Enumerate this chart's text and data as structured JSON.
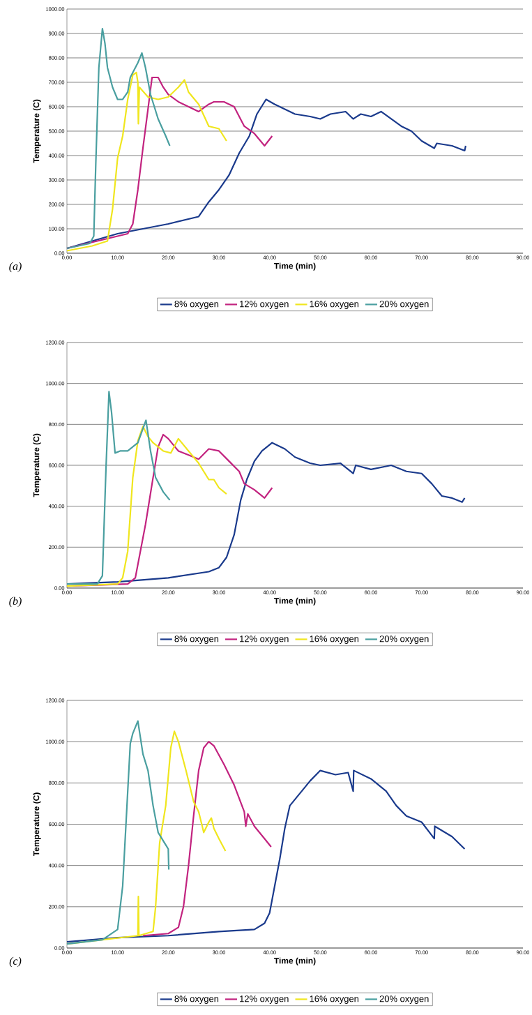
{
  "chart_data": [
    {
      "type": "line",
      "xlabel": "Time (min)",
      "ylabel": "Temperature (C)",
      "annotations": [
        "(a)"
      ],
      "grid": "y",
      "legend": "bottom",
      "xlim": [
        0,
        90
      ],
      "ylim": [
        0,
        1000
      ],
      "xticks": [
        {
          "value": 0,
          "label": "0.00"
        },
        {
          "value": 10,
          "label": "10.00"
        },
        {
          "value": 20,
          "label": "20.00"
        },
        {
          "value": 30,
          "label": "30.00"
        },
        {
          "value": 40,
          "label": "40.00"
        },
        {
          "value": 50,
          "label": "50.00"
        },
        {
          "value": 60,
          "label": "60.00"
        },
        {
          "value": 70,
          "label": "70.00"
        },
        {
          "value": 80,
          "label": "80.00"
        },
        {
          "value": 90,
          "label": "90.00"
        }
      ],
      "yticks": [
        {
          "value": 0,
          "label": "0.00"
        },
        {
          "value": 100,
          "label": "100.00"
        },
        {
          "value": 200,
          "label": "200.00"
        },
        {
          "value": 300,
          "label": "300.00"
        },
        {
          "value": 400,
          "label": "400.00"
        },
        {
          "value": 500,
          "label": "500.00"
        },
        {
          "value": 600,
          "label": "600.00"
        },
        {
          "value": 700,
          "label": "700.00"
        },
        {
          "value": 800,
          "label": "800.00"
        },
        {
          "value": 900,
          "label": "900.00"
        },
        {
          "value": 1000,
          "label": "1000.00"
        }
      ],
      "series": [
        {
          "name": "8% oxygen",
          "color": "#1a3a8c",
          "x": [
            0,
            10,
            20,
            26,
            28,
            30,
            32,
            34,
            36,
            37.5,
            39.3,
            41,
            43,
            45,
            48,
            50,
            52,
            55,
            56.5,
            58,
            60,
            62,
            64,
            66,
            68,
            70,
            72.5,
            73,
            76,
            78.5,
            78.7
          ],
          "values": [
            20,
            80,
            120,
            150,
            210,
            260,
            320,
            410,
            480,
            570,
            630,
            610,
            590,
            570,
            560,
            550,
            570,
            580,
            550,
            570,
            560,
            580,
            550,
            520,
            500,
            460,
            430,
            450,
            440,
            420,
            440
          ]
        },
        {
          "name": "12% oxygen",
          "color": "#c2237f",
          "x": [
            0,
            8,
            12,
            13,
            14,
            15,
            16,
            16.8,
            18,
            19,
            20,
            22,
            24,
            26,
            28,
            29,
            31,
            33,
            35,
            37,
            39,
            40.5
          ],
          "values": [
            20,
            60,
            80,
            120,
            260,
            430,
            590,
            720,
            720,
            680,
            650,
            620,
            600,
            580,
            610,
            620,
            620,
            600,
            520,
            490,
            440,
            480
          ]
        },
        {
          "name": "16% oxygen",
          "color": "#f0e61e",
          "x": [
            0,
            5,
            8,
            9,
            10,
            11,
            12,
            13,
            13.7,
            14,
            14.1,
            14.3,
            16,
            18,
            20,
            22,
            23.2,
            24,
            26,
            28,
            30,
            31.5
          ],
          "values": [
            10,
            30,
            50,
            180,
            390,
            480,
            630,
            730,
            740,
            700,
            530,
            680,
            640,
            630,
            640,
            680,
            710,
            660,
            610,
            520,
            510,
            460
          ]
        },
        {
          "name": "20% oxygen",
          "color": "#4a9fa0",
          "x": [
            0,
            4.5,
            5.3,
            5.7,
            6.3,
            7,
            7.5,
            8,
            9,
            10,
            11,
            12,
            12.5,
            14,
            14.8,
            15.5,
            16.5,
            18,
            19.5,
            20.3
          ],
          "values": [
            20,
            40,
            70,
            370,
            760,
            920,
            860,
            760,
            680,
            630,
            630,
            660,
            720,
            780,
            820,
            760,
            650,
            550,
            480,
            440
          ]
        }
      ]
    },
    {
      "type": "line",
      "xlabel": "Time (min)",
      "ylabel": "Temperature (C)",
      "annotations": [
        "(b)"
      ],
      "grid": "y",
      "legend": "bottom",
      "xlim": [
        0,
        90
      ],
      "ylim": [
        0,
        1200
      ],
      "xticks": [
        {
          "value": 0,
          "label": "0.00"
        },
        {
          "value": 10,
          "label": "10.00"
        },
        {
          "value": 20,
          "label": "20.00"
        },
        {
          "value": 30,
          "label": "30.00"
        },
        {
          "value": 40,
          "label": "40.00"
        },
        {
          "value": 50,
          "label": "50.00"
        },
        {
          "value": 60,
          "label": "60.00"
        },
        {
          "value": 70,
          "label": "70.00"
        },
        {
          "value": 80,
          "label": "80.00"
        },
        {
          "value": 90,
          "label": "90.00"
        }
      ],
      "yticks": [
        {
          "value": 0,
          "label": "0.00"
        },
        {
          "value": 200,
          "label": "200.00"
        },
        {
          "value": 400,
          "label": "400.00"
        },
        {
          "value": 600,
          "label": "600.00"
        },
        {
          "value": 800,
          "label": "800.00"
        },
        {
          "value": 1000,
          "label": "1000.00"
        },
        {
          "value": 1200,
          "label": "1200.00"
        }
      ],
      "series": [
        {
          "name": "8% oxygen",
          "color": "#1a3a8c",
          "x": [
            0,
            10,
            20,
            28,
            30,
            31.5,
            33,
            34.3,
            35.5,
            37,
            38.5,
            40.5,
            43,
            45,
            48,
            50,
            54,
            56.5,
            57,
            60,
            64,
            67,
            70,
            72,
            74,
            76,
            78,
            78.5
          ],
          "values": [
            20,
            30,
            50,
            80,
            100,
            150,
            260,
            430,
            530,
            620,
            670,
            710,
            680,
            640,
            610,
            600,
            610,
            560,
            600,
            580,
            600,
            570,
            560,
            510,
            450,
            440,
            420,
            440
          ]
        },
        {
          "name": "12% oxygen",
          "color": "#c2237f",
          "x": [
            0,
            12,
            13.5,
            14.5,
            15.5,
            17,
            18,
            19,
            20,
            22,
            24,
            26,
            28,
            30,
            32,
            34,
            35,
            37,
            39,
            40.5
          ],
          "values": [
            10,
            20,
            50,
            180,
            310,
            540,
            690,
            750,
            730,
            670,
            650,
            630,
            680,
            670,
            620,
            570,
            510,
            480,
            440,
            490
          ]
        },
        {
          "name": "16% oxygen",
          "color": "#f0e61e",
          "x": [
            0,
            10,
            11,
            12,
            13,
            14,
            15,
            16,
            17,
            19,
            20.5,
            22,
            24,
            26,
            28,
            29,
            30,
            31.5
          ],
          "values": [
            10,
            20,
            50,
            180,
            540,
            720,
            790,
            740,
            710,
            670,
            660,
            730,
            670,
            610,
            530,
            530,
            490,
            460
          ]
        },
        {
          "name": "20% oxygen",
          "color": "#4a9fa0",
          "x": [
            0,
            6,
            7,
            7.7,
            8.3,
            8.8,
            9.5,
            10.5,
            12,
            14,
            15.6,
            16.5,
            17.5,
            19,
            20.3
          ],
          "values": [
            20,
            20,
            60,
            580,
            960,
            860,
            660,
            670,
            670,
            710,
            820,
            670,
            540,
            470,
            430
          ]
        }
      ]
    },
    {
      "type": "line",
      "xlabel": "Time (min)",
      "ylabel": "Temperature (C)",
      "annotations": [
        "(c)"
      ],
      "grid": "y",
      "legend": "bottom",
      "xlim": [
        0,
        90
      ],
      "ylim": [
        0,
        1200
      ],
      "xticks": [
        {
          "value": 0,
          "label": "0.00"
        },
        {
          "value": 10,
          "label": "10.00"
        },
        {
          "value": 20,
          "label": "20.00"
        },
        {
          "value": 30,
          "label": "30.00"
        },
        {
          "value": 40,
          "label": "40.00"
        },
        {
          "value": 50,
          "label": "50.00"
        },
        {
          "value": 60,
          "label": "60.00"
        },
        {
          "value": 70,
          "label": "70.00"
        },
        {
          "value": 80,
          "label": "80.00"
        },
        {
          "value": 90,
          "label": "90.00"
        }
      ],
      "yticks": [
        {
          "value": 0,
          "label": "0.00"
        },
        {
          "value": 200,
          "label": "200.00"
        },
        {
          "value": 400,
          "label": "400.00"
        },
        {
          "value": 600,
          "label": "600.00"
        },
        {
          "value": 800,
          "label": "800.00"
        },
        {
          "value": 1000,
          "label": "1000.00"
        },
        {
          "value": 1200,
          "label": "1200.00"
        }
      ],
      "series": [
        {
          "name": "8% oxygen",
          "color": "#1a3a8c",
          "x": [
            0,
            10,
            20,
            30,
            37,
            39,
            40,
            41,
            42,
            43,
            44,
            46,
            48,
            50,
            53,
            55.5,
            56.5,
            56.6,
            60,
            63,
            65,
            67,
            70,
            72.5,
            72.6,
            76,
            78.5
          ],
          "values": [
            30,
            50,
            60,
            80,
            90,
            120,
            170,
            300,
            430,
            580,
            690,
            750,
            810,
            860,
            840,
            850,
            760,
            860,
            820,
            760,
            690,
            640,
            610,
            530,
            590,
            540,
            480
          ]
        },
        {
          "name": "12% oxygen",
          "color": "#c2237f",
          "x": [
            15,
            20,
            22,
            23,
            24,
            25,
            26,
            27,
            28,
            29,
            31,
            33,
            35,
            35.3,
            35.7,
            37,
            39,
            40.3
          ],
          "values": [
            60,
            70,
            100,
            200,
            400,
            640,
            860,
            970,
            1000,
            980,
            890,
            790,
            660,
            590,
            650,
            590,
            530,
            490
          ]
        },
        {
          "name": "16% oxygen",
          "color": "#f0e61e",
          "x": [
            0,
            14,
            14.1,
            14.2,
            17,
            17.5,
            18.3,
            19.5,
            20.5,
            21.2,
            22,
            23.5,
            25,
            26,
            27,
            28,
            28.5,
            29,
            30,
            31.3
          ],
          "values": [
            20,
            60,
            250,
            60,
            80,
            200,
            510,
            690,
            970,
            1050,
            1000,
            860,
            710,
            660,
            560,
            610,
            630,
            580,
            530,
            470
          ]
        },
        {
          "name": "20% oxygen",
          "color": "#4a9fa0",
          "x": [
            0,
            7,
            10,
            11,
            12,
            12.5,
            13,
            14,
            15,
            16,
            17,
            18,
            19.5,
            20,
            20.1
          ],
          "values": [
            20,
            40,
            90,
            300,
            760,
            990,
            1040,
            1100,
            940,
            860,
            690,
            560,
            500,
            480,
            380
          ]
        }
      ]
    }
  ]
}
